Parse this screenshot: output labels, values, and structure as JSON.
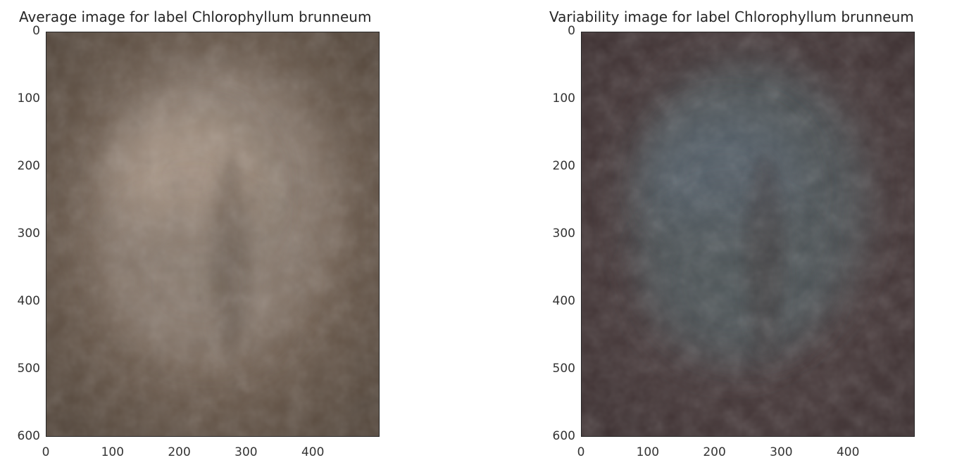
{
  "chart_data": [
    {
      "type": "heatmap",
      "title": "Average image for label Chlorophyllum brunneum",
      "xlabel": "",
      "ylabel": "",
      "x_ticks": [
        0,
        100,
        200,
        300,
        400
      ],
      "y_ticks": [
        0,
        100,
        200,
        300,
        400,
        500,
        600
      ],
      "xlim": [
        0,
        500
      ],
      "ylim": [
        600,
        0
      ],
      "grid": false,
      "palette": {
        "background": "#6f5e50",
        "center": "#a89585",
        "mid": "#8a7b6f",
        "edge": "#4f4237"
      }
    },
    {
      "type": "heatmap",
      "title": "Variability image for label Chlorophyllum brunneum",
      "xlabel": "",
      "ylabel": "",
      "x_ticks": [
        0,
        100,
        200,
        300,
        400
      ],
      "y_ticks": [
        0,
        100,
        200,
        300,
        400,
        500,
        600
      ],
      "xlim": [
        0,
        500
      ],
      "ylim": [
        600,
        0
      ],
      "grid": false,
      "palette": {
        "background": "#47393a",
        "center": "#55616a",
        "mid": "#4e5458",
        "edge": "#3a2d2e"
      }
    }
  ]
}
